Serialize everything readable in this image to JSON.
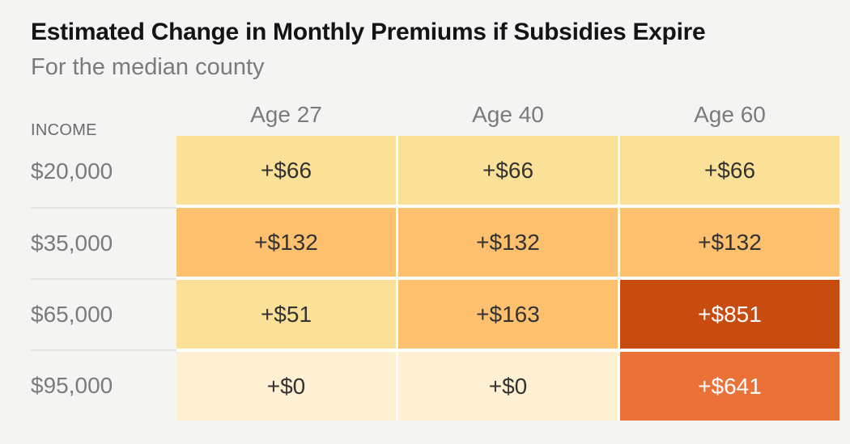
{
  "chart_data": {
    "type": "heatmap",
    "title": "Estimated Change in Monthly Premiums if Subsidies Expire",
    "subtitle": "For the median county",
    "row_header_label": "INCOME",
    "columns": [
      "Age 27",
      "Age 40",
      "Age 60"
    ],
    "rows": [
      {
        "income": "$20,000",
        "values": [
          "+$66",
          "+$66",
          "+$66"
        ],
        "cell_colors": [
          "#fbe098",
          "#fbe098",
          "#fbe098"
        ],
        "text_colors": [
          "#333333",
          "#333333",
          "#333333"
        ]
      },
      {
        "income": "$35,000",
        "values": [
          "+$132",
          "+$132",
          "+$132"
        ],
        "cell_colors": [
          "#fcc06e",
          "#fcc06e",
          "#fcc06e"
        ],
        "text_colors": [
          "#333333",
          "#333333",
          "#333333"
        ]
      },
      {
        "income": "$65,000",
        "values": [
          "+$51",
          "+$163",
          "+$851"
        ],
        "cell_colors": [
          "#fbe098",
          "#fcc06e",
          "#c84b0f"
        ],
        "text_colors": [
          "#333333",
          "#333333",
          "#ffffff"
        ]
      },
      {
        "income": "$95,000",
        "values": [
          "+$0",
          "+$0",
          "+$641"
        ],
        "cell_colors": [
          "#fdf0d3",
          "#fdf0d3",
          "#ea7239"
        ],
        "text_colors": [
          "#333333",
          "#333333",
          "#ffffff"
        ]
      }
    ],
    "layout_colors": {
      "background": "#f4f4f3",
      "title_text": "#141414",
      "label_text": "#7b7b7b",
      "grid_gap": "#ffffff",
      "label_divider": "#e5e5e4"
    }
  }
}
